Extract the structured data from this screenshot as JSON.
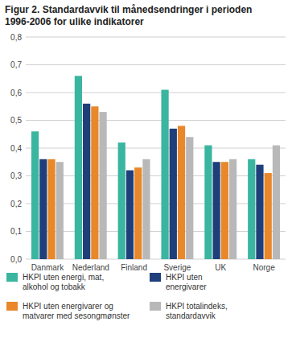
{
  "chart_data": {
    "type": "bar",
    "title": "Figur 2. Standardavvik til månedsendringer i perioden\n1996-2006 for ulike indikatorer",
    "categories": [
      "Danmark",
      "Nederland",
      "Finland",
      "Sverige",
      "UK",
      "Norge"
    ],
    "series": [
      {
        "name": "HKPI uten energi, mat,\nalkohol og tobakk",
        "color": "#3ab5a0",
        "values": [
          0.46,
          0.66,
          0.42,
          0.61,
          0.41,
          0.36
        ]
      },
      {
        "name": "HKPI uten\nenergivarer",
        "color": "#1f3f7a",
        "values": [
          0.36,
          0.56,
          0.32,
          0.47,
          0.35,
          0.34
        ]
      },
      {
        "name": "HKPI uten energivarer og\nmatvarer med sesongmønster",
        "color": "#e8882a",
        "values": [
          0.36,
          0.55,
          0.33,
          0.48,
          0.35,
          0.31
        ]
      },
      {
        "name": "HKPI totalindeks,\nstandardavvik",
        "color": "#b8b8b8",
        "values": [
          0.35,
          0.53,
          0.36,
          0.44,
          0.36,
          0.41
        ]
      }
    ],
    "ylim": [
      0.0,
      0.8
    ],
    "yticks": [
      {
        "value": 0.0,
        "label": "0,0"
      },
      {
        "value": 0.1,
        "label": "0,1"
      },
      {
        "value": 0.2,
        "label": "0,2"
      },
      {
        "value": 0.3,
        "label": "0,3"
      },
      {
        "value": 0.4,
        "label": "0,4"
      },
      {
        "value": 0.5,
        "label": "0,5"
      },
      {
        "value": 0.6,
        "label": "0,6"
      },
      {
        "value": 0.7,
        "label": "0,7"
      },
      {
        "value": 0.8,
        "label": "0,8"
      }
    ],
    "grid": true,
    "legend": "bottom"
  }
}
